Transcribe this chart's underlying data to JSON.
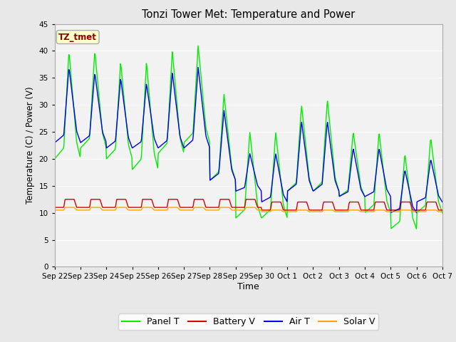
{
  "title": "Tonzi Tower Met: Temperature and Power",
  "xlabel": "Time",
  "ylabel": "Temperature (C) / Power (V)",
  "ylim": [
    0,
    45
  ],
  "yticks": [
    0,
    5,
    10,
    15,
    20,
    25,
    30,
    35,
    40,
    45
  ],
  "annotation_text": "TZ_tmet",
  "annotation_color": "#8B0000",
  "annotation_bg": "#FFFFCC",
  "annotation_border": "#AAAAAA",
  "colors": {
    "Panel T": "#00EE00",
    "Battery V": "#DD0000",
    "Air T": "#0000EE",
    "Solar V": "#FFA500"
  },
  "background_color": "#E8E8E8",
  "plot_bg": "#F2F2F2",
  "grid_color": "#FFFFFF",
  "x_labels": [
    "Sep 22",
    "Sep 23",
    "Sep 24",
    "Sep 25",
    "Sep 26",
    "Sep 27",
    "Sep 28",
    "Sep 29",
    "Sep 30",
    "Oct 1",
    "Oct 2",
    "Oct 3",
    "Oct 4",
    "Oct 5",
    "Oct 6",
    "Oct 7"
  ],
  "figsize": [
    6.4,
    4.8
  ],
  "dpi": 100
}
